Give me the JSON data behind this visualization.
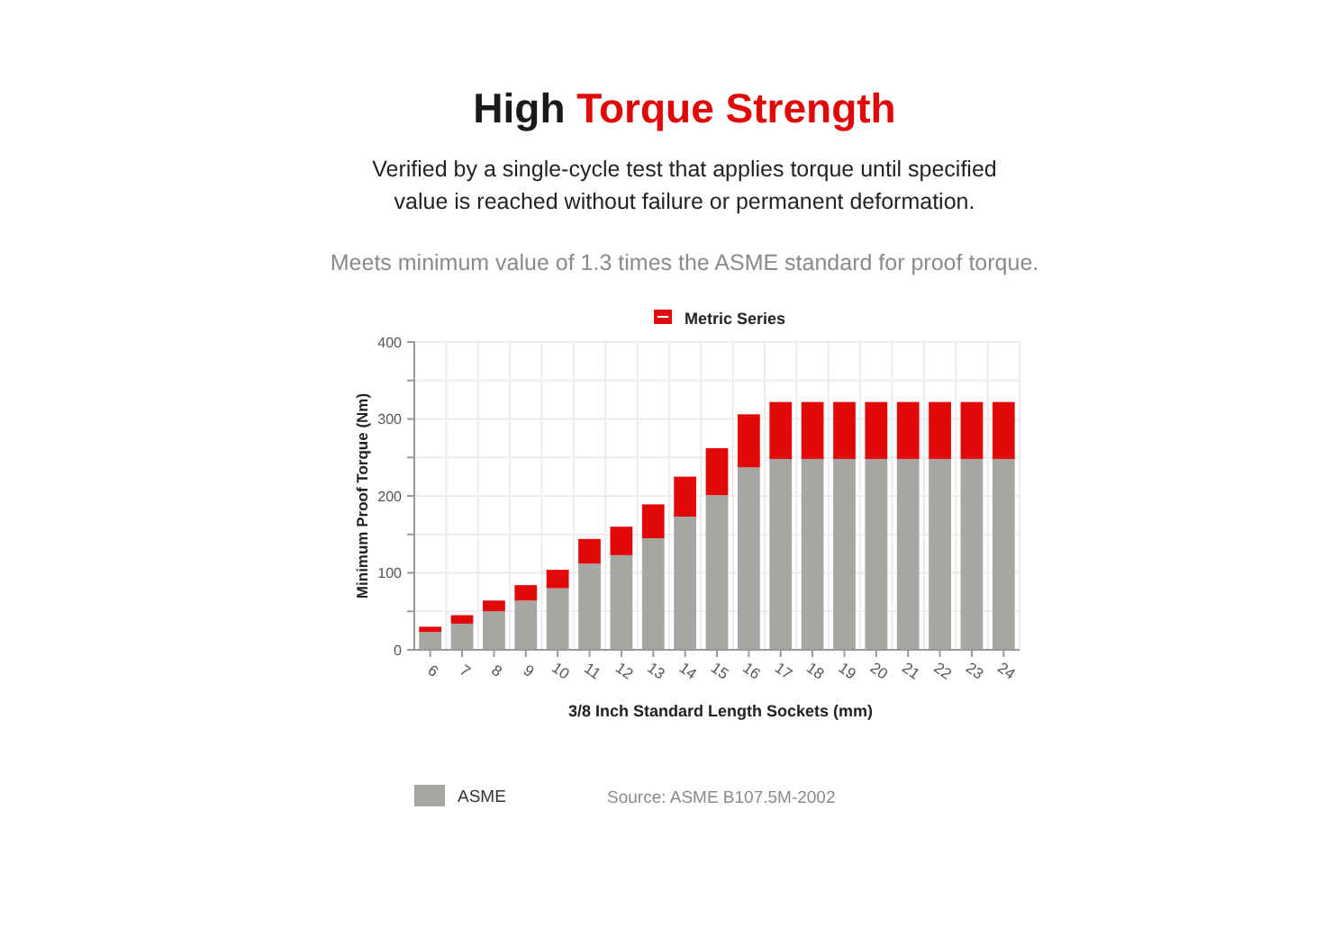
{
  "chart_data": {
    "type": "bar",
    "title": "High Torque Strength",
    "subtitle": "Verified by a single-cycle test that applies torque until specified value is reached without failure or permanent deformation.",
    "annotations": [
      "Meets minimum value of 1.3 times the ASME standard for proof torque.",
      "Metric Series",
      "Source: ASME B107.5M-2002"
    ],
    "xlabel": "3/8 Inch Standard Length Sockets (mm)",
    "ylabel": "Minimum Proof Torque (Nm)",
    "categories": [
      "6",
      "7",
      "8",
      "9",
      "10",
      "11",
      "12",
      "13",
      "14",
      "15",
      "16",
      "17",
      "18",
      "19",
      "20",
      "21",
      "22",
      "23",
      "24"
    ],
    "series": [
      {
        "name": "ASME",
        "color": "#a6a6a3",
        "values": [
          23,
          34,
          50,
          64,
          80,
          112,
          123,
          145,
          173,
          201,
          237,
          248,
          248,
          248,
          248,
          248,
          248,
          248,
          248
        ]
      },
      {
        "color": "#e00808",
        "values": [
          7,
          11,
          14,
          20,
          24,
          32,
          37,
          44,
          52,
          61,
          69,
          74,
          74,
          74,
          74,
          74,
          74,
          74,
          74
        ]
      }
    ],
    "stacked": true,
    "ylim": [
      0,
      400
    ],
    "yticks": [
      0,
      {
        "value": 50,
        "label": null
      },
      100,
      {
        "value": 150,
        "label": null
      },
      200,
      {
        "value": 250,
        "label": null
      },
      300,
      {
        "value": 350,
        "label": null
      },
      400
    ],
    "grid": true,
    "legend": "bottom"
  }
}
